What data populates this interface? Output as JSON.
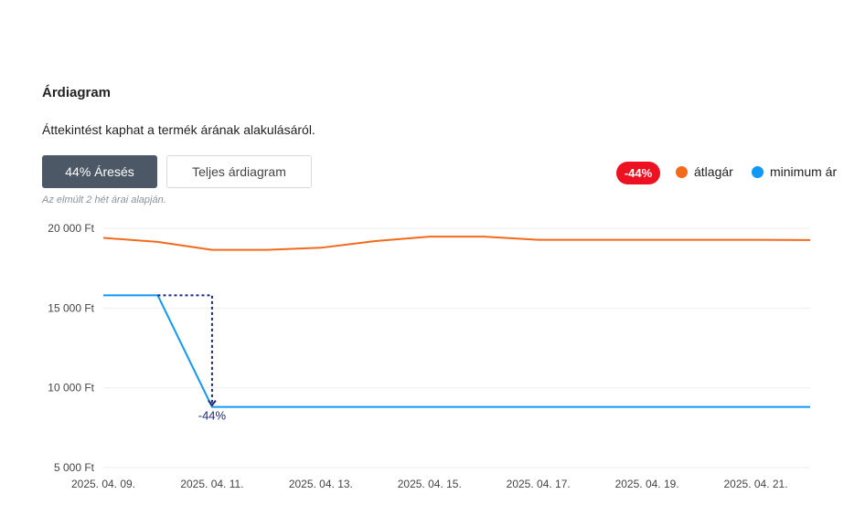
{
  "header": {
    "title": "Árdiagram",
    "subtitle": "Áttekintést kaphat a termék árának alakulásáról."
  },
  "tabs": [
    {
      "label": "44% Áresés",
      "active": true
    },
    {
      "label": "Teljes árdiagram",
      "active": false
    }
  ],
  "note": "Az elmúlt 2 hét árai alapján.",
  "badge": {
    "label": "-44%",
    "color": "#ee1122"
  },
  "legend": [
    {
      "label": "átlagár",
      "color": "#f26a1b"
    },
    {
      "label": "minimum ár",
      "color": "#1197f5"
    }
  ],
  "chart_data": {
    "type": "line",
    "x": [
      "2025. 04. 09.",
      "2025. 04. 10.",
      "2025. 04. 11.",
      "2025. 04. 12.",
      "2025. 04. 13.",
      "2025. 04. 14.",
      "2025. 04. 15.",
      "2025. 04. 16.",
      "2025. 04. 17.",
      "2025. 04. 18.",
      "2025. 04. 19.",
      "2025. 04. 20.",
      "2025. 04. 21.",
      "2025. 04. 22."
    ],
    "x_tick_labels": [
      "2025. 04. 09.",
      "2025. 04. 11.",
      "2025. 04. 13.",
      "2025. 04. 15.",
      "2025. 04. 17.",
      "2025. 04. 19.",
      "2025. 04. 21."
    ],
    "series": [
      {
        "name": "átlagár",
        "color": "#f26a1b",
        "values": [
          19400,
          19150,
          18650,
          18650,
          18780,
          19200,
          19480,
          19480,
          19280,
          19280,
          19280,
          19280,
          19280,
          19260
        ]
      },
      {
        "name": "minimum ár",
        "color": "#1197f5",
        "values": [
          15800,
          15800,
          8800,
          8800,
          8800,
          8800,
          8800,
          8800,
          8800,
          8800,
          8800,
          8800,
          8800,
          8800
        ]
      }
    ],
    "y_ticks": [
      5000,
      10000,
      15000,
      20000
    ],
    "y_tick_labels": [
      "5 000 Ft",
      "10 000 Ft",
      "15 000 Ft",
      "20 000 Ft"
    ],
    "ylim": [
      5000,
      20000
    ],
    "grid": true,
    "annotation": {
      "label": "-44%",
      "from_x": "2025. 04. 10.",
      "to_x": "2025. 04. 11.",
      "from_y": 15800,
      "to_y": 8800,
      "color": "#1b2a7a"
    },
    "title": "",
    "xlabel": "",
    "ylabel": ""
  }
}
